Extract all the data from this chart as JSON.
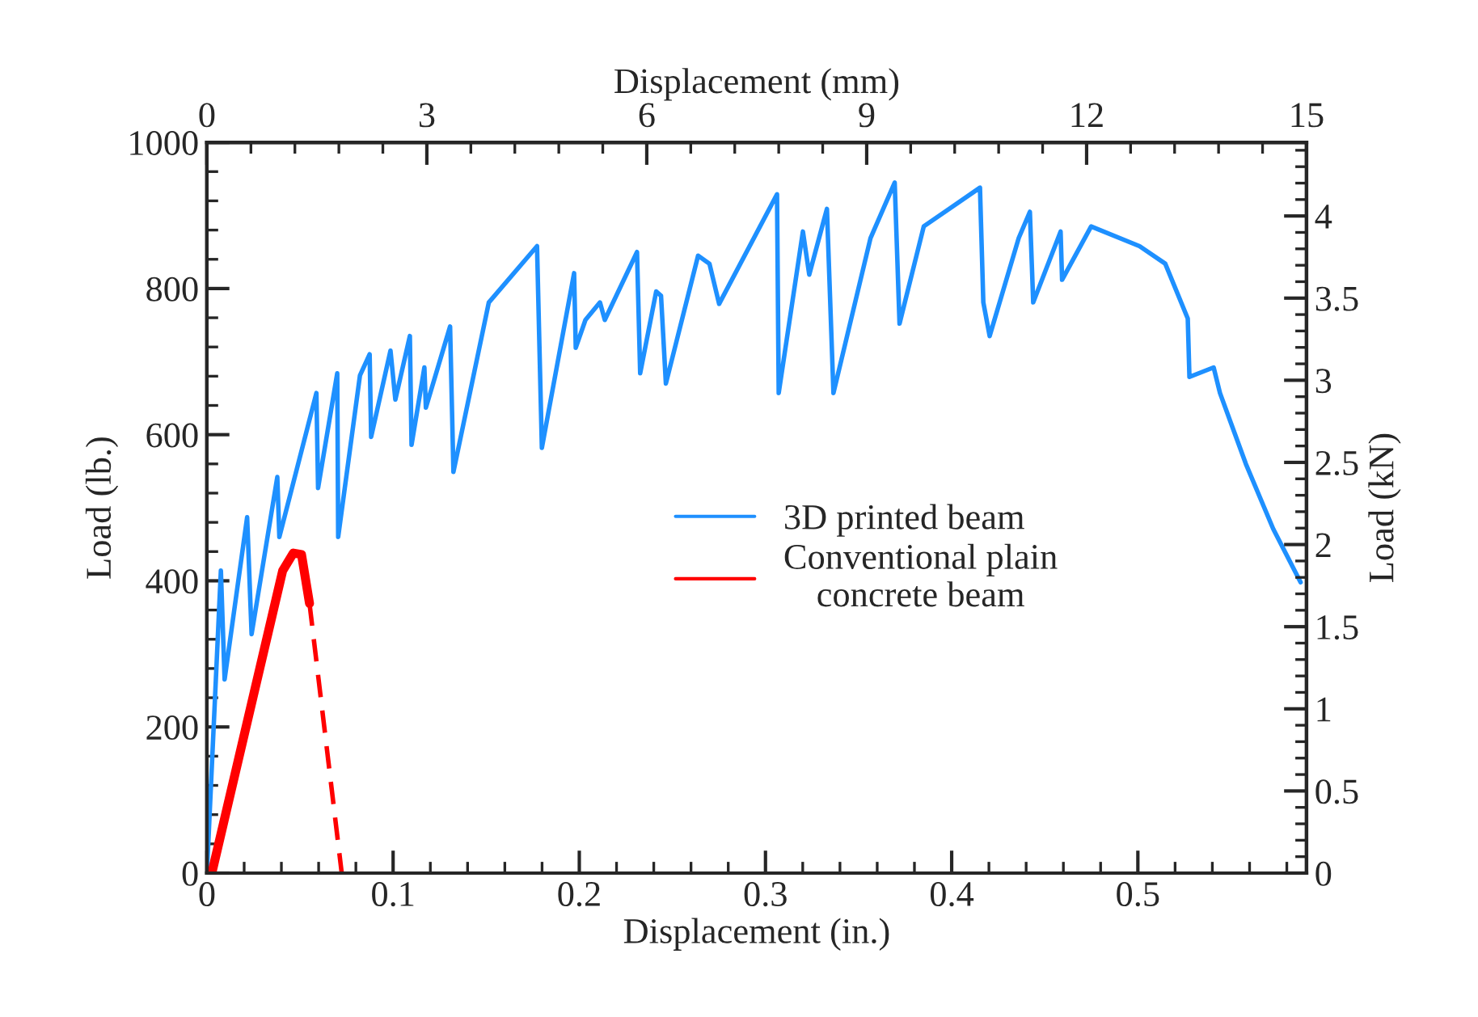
{
  "chart_data": {
    "type": "line",
    "xlabel": "Displacement (in.)",
    "ylabel": "Load (lb.)",
    "x2label": "Displacement (mm)",
    "y2label": "Load (kN)",
    "xlim": [
      0,
      0.5906
    ],
    "xticks": [
      0,
      0.1,
      0.2,
      0.3,
      0.4,
      0.5
    ],
    "ylim": [
      0,
      1000
    ],
    "yticks": [
      0,
      200,
      400,
      600,
      800,
      1000
    ],
    "x2lim": [
      0,
      15
    ],
    "x2ticks": [
      0,
      3,
      6,
      9,
      12,
      15
    ],
    "y2lim": [
      0,
      4.448
    ],
    "y2ticks": [
      0,
      0.5,
      1,
      1.5,
      2,
      2.5,
      3,
      3.5,
      4
    ],
    "legend": "center",
    "grid": false,
    "series": [
      {
        "name": "3D printed beam",
        "color": "#1e90ff",
        "line_style": "solid",
        "x": [
          0,
          0.0075,
          0.0095,
          0.0216,
          0.024,
          0.0378,
          0.0389,
          0.0588,
          0.0597,
          0.07,
          0.0705,
          0.0822,
          0.0874,
          0.0882,
          0.0986,
          0.1012,
          0.109,
          0.1099,
          0.1168,
          0.1176,
          0.1306,
          0.1324,
          0.1514,
          0.1773,
          0.1799,
          0.1972,
          0.1981,
          0.2033,
          0.2111,
          0.2137,
          0.231,
          0.2327,
          0.2413,
          0.2439,
          0.2465,
          0.2638,
          0.2699,
          0.2751,
          0.3062,
          0.3071,
          0.3201,
          0.3235,
          0.333,
          0.3365,
          0.3564,
          0.3694,
          0.372,
          0.385,
          0.4152,
          0.417,
          0.4204,
          0.436,
          0.442,
          0.4438,
          0.4585,
          0.4593,
          0.4749,
          0.5009,
          0.5147,
          0.5268,
          0.5277,
          0.5407,
          0.5441,
          0.558,
          0.5727,
          0.5874
        ],
        "values": [
          0,
          414,
          265,
          487,
          327,
          542,
          460,
          657,
          527,
          684,
          460,
          681,
          710,
          597,
          715,
          648,
          735,
          586,
          692,
          637,
          748,
          549,
          781,
          858,
          582,
          821,
          719,
          757,
          781,
          757,
          850,
          684,
          796,
          790,
          670,
          845,
          834,
          779,
          929,
          657,
          878,
          819,
          909,
          657,
          869,
          945,
          752,
          885,
          938,
          781,
          735,
          869,
          905,
          781,
          878,
          812,
          885,
          858,
          834,
          759,
          679,
          692,
          657,
          560,
          471,
          398
        ]
      },
      {
        "name": "Conventional plain\nconcrete beam",
        "color": "#ff0000",
        "line_style": "solid",
        "x": [
          0.003,
          0.0407,
          0.0464,
          0.0508,
          0.0551
        ],
        "values": [
          4,
          414,
          438,
          436,
          369
        ]
      },
      {
        "color": "#ff0000",
        "line_style": "dashed",
        "x": [
          0.0551,
          0.0724
        ],
        "values": [
          369,
          0
        ]
      }
    ]
  }
}
